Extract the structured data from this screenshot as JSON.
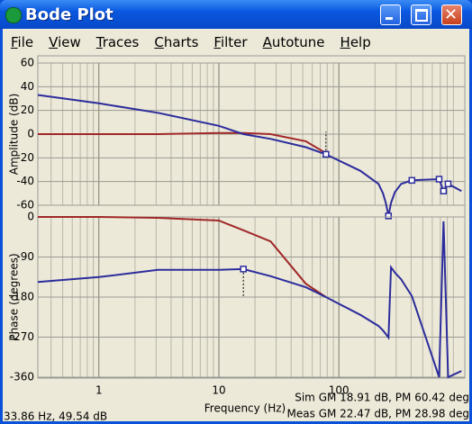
{
  "window": {
    "title": "Bode Plot"
  },
  "menu": [
    "File",
    "View",
    "Traces",
    "Charts",
    "Filter",
    "Autotune",
    "Help"
  ],
  "chart_data": [
    {
      "type": "line",
      "ylabel": "Amplitude (dB)",
      "xscale": "log",
      "grid": true,
      "xtick_labels": false,
      "guide_direction": "up",
      "x": [
        0.31,
        1,
        3.1,
        10,
        16,
        27,
        53,
        78,
        151,
        214,
        233,
        246,
        259,
        272,
        293,
        330,
        406,
        684,
        745,
        813,
        1050
      ],
      "xlim": [
        0.31,
        1120
      ],
      "xticks": [
        1,
        10,
        100
      ],
      "xminorticks": [
        0.4,
        0.5,
        0.6,
        0.7,
        0.8,
        0.9,
        2,
        3,
        4,
        5,
        6,
        7,
        8,
        9,
        20,
        30,
        40,
        50,
        60,
        70,
        80,
        90,
        200,
        300,
        400,
        500,
        600,
        700,
        800,
        900
      ],
      "ylim": [
        -60,
        60
      ],
      "yticks": [
        60,
        40,
        20,
        0,
        -20,
        -40,
        -60
      ],
      "series": [
        {
          "color": "#a02828",
          "values": [
            0,
            0,
            0,
            1,
            1,
            0,
            -6,
            -16,
            null,
            null,
            null,
            null,
            null,
            null,
            null,
            null,
            null,
            null,
            null,
            null,
            null
          ]
        },
        {
          "color": "#2c2c9c",
          "values": [
            33,
            26,
            18,
            7,
            0,
            -4,
            -11,
            -17,
            -31,
            -42,
            -50,
            -58,
            -69,
            -58,
            -49,
            -42,
            -39,
            -38,
            -48,
            -42,
            -48
          ]
        }
      ],
      "markers": {
        "color": "#2c2c9c",
        "x": [
          78,
          259,
          406,
          684,
          745,
          813
        ],
        "values": [
          -17,
          -69,
          -39,
          -38,
          -48,
          -42
        ]
      }
    },
    {
      "type": "line",
      "ylabel": "Phase (degrees)",
      "xlabel": "Frequency (Hz)",
      "xscale": "log",
      "grid": true,
      "xtick_labels": true,
      "guide_direction": "down",
      "x": [
        0.31,
        1,
        3.1,
        10,
        16,
        27,
        53,
        78,
        151,
        214,
        233,
        246,
        259,
        272,
        293,
        330,
        406,
        684,
        745,
        813,
        1050
      ],
      "xlim": [
        0.31,
        1120
      ],
      "xticks": [
        1,
        10,
        100
      ],
      "xminorticks": [
        0.4,
        0.5,
        0.6,
        0.7,
        0.8,
        0.9,
        2,
        3,
        4,
        5,
        6,
        7,
        8,
        9,
        20,
        30,
        40,
        50,
        60,
        70,
        80,
        90,
        200,
        300,
        400,
        500,
        600,
        700,
        800,
        900
      ],
      "ylim": [
        -360,
        0
      ],
      "yticks": [
        0,
        -90,
        -180,
        -270,
        -360
      ],
      "series": [
        {
          "color": "#a02828",
          "values": [
            0,
            0,
            -2,
            -8,
            -30,
            -55,
            -150,
            -180,
            null,
            null,
            null,
            null,
            null,
            null,
            null,
            null,
            null,
            null,
            null,
            null,
            null
          ]
        },
        {
          "color": "#2c2c9c",
          "values": [
            -146,
            -135,
            -119,
            -119,
            -117,
            -133,
            -158,
            -180,
            -220,
            -245,
            -255,
            -263,
            -271,
            -113,
            -125,
            -140,
            -178,
            -360,
            -10,
            -360,
            -346
          ]
        }
      ],
      "markers": {
        "color": "#2c2c9c",
        "x": [
          16
        ],
        "values": [
          -117
        ]
      }
    }
  ],
  "status": {
    "cursor": "33.86 Hz, 49.54 dB",
    "sim": "Sim GM 18.91 dB, PM 60.42 deg",
    "meas": "Meas GM 22.47 dB, PM 28.98 deg"
  }
}
